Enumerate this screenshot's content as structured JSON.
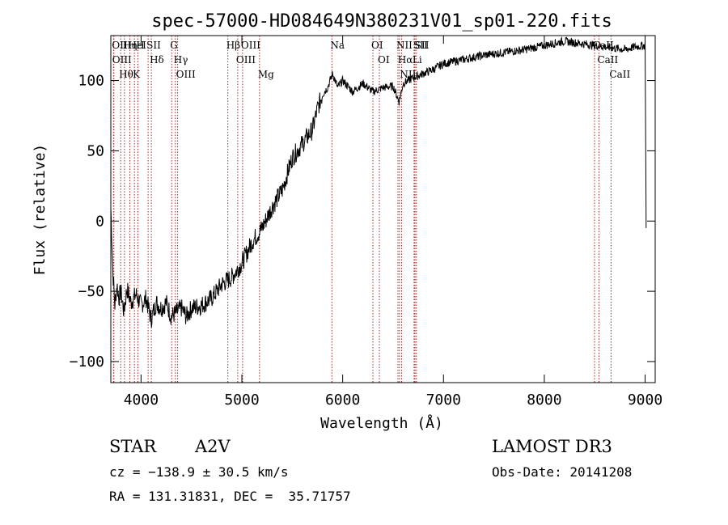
{
  "chart_data": {
    "type": "line",
    "title": "spec-57000-HD084649N380231V01_sp01-220.fits",
    "xlabel": "Wavelength (Å)",
    "ylabel": "Flux (relative)",
    "xlim": [
      3700,
      9100
    ],
    "ylim": [
      -115,
      132
    ],
    "xticks": [
      4000,
      5000,
      6000,
      7000,
      8000,
      9000
    ],
    "yticks": [
      -100,
      -50,
      0,
      50,
      100
    ],
    "grid": false,
    "legend": "none",
    "line_color": "#000000",
    "marker_color": "#aa2222",
    "series": [
      {
        "x": [
          3700,
          3720,
          3740,
          3760,
          3780,
          3800,
          3830,
          3860,
          3900,
          3950,
          4000,
          4050,
          4100,
          4150,
          4200,
          4250,
          4300,
          4350,
          4400,
          4450,
          4500,
          4600,
          4700,
          4800,
          4900,
          5000,
          5100,
          5200,
          5300,
          5400,
          5500,
          5600,
          5700,
          5750,
          5800,
          5850,
          5900,
          5950,
          6000,
          6100,
          6200,
          6300,
          6400,
          6500,
          6560,
          6600,
          6700,
          6800,
          6900,
          7000,
          7200,
          7400,
          7600,
          7800,
          8000,
          8200,
          8400,
          8600,
          8800,
          8900,
          9000,
          9010
        ],
        "y": [
          10,
          -35,
          -60,
          -45,
          -55,
          -50,
          -65,
          -48,
          -58,
          -52,
          -60,
          -55,
          -70,
          -58,
          -62,
          -58,
          -68,
          -65,
          -62,
          -68,
          -62,
          -60,
          -55,
          -45,
          -40,
          -30,
          -15,
          -5,
          10,
          22,
          45,
          55,
          65,
          80,
          90,
          95,
          105,
          95,
          100,
          92,
          98,
          92,
          95,
          96,
          85,
          98,
          102,
          105,
          108,
          112,
          115,
          118,
          120,
          122,
          125,
          128,
          126,
          124,
          122,
          124,
          125,
          -5
        ]
      }
    ],
    "lines": [
      {
        "label": "Hθ",
        "x": 3798
      },
      {
        "label": "OII",
        "x": 3727
      },
      {
        "label": "OIII",
        "x": 3730
      },
      {
        "label": "K",
        "x": 3934
      },
      {
        "label": "HeI",
        "x": 3889
      },
      {
        "label": "Hη",
        "x": 3835
      },
      {
        "label": "H",
        "x": 3968
      },
      {
        "label": "SII",
        "x": 4070
      },
      {
        "label": "Hδ",
        "x": 4102
      },
      {
        "label": "OIII",
        "x": 4363
      },
      {
        "label": "Hγ",
        "x": 4340
      },
      {
        "label": "G",
        "x": 4304
      },
      {
        "label": "Hβ",
        "x": 4861
      },
      {
        "label": "OIII",
        "x": 4959
      },
      {
        "label": "OIII",
        "x": 5007
      },
      {
        "label": "Mg",
        "x": 5175
      },
      {
        "label": "Na",
        "x": 5893
      },
      {
        "label": "OI",
        "x": 6300
      },
      {
        "label": "OI",
        "x": 6364
      },
      {
        "label": "Hα",
        "x": 6563
      },
      {
        "label": "NII",
        "x": 6548
      },
      {
        "label": "NII",
        "x": 6584
      },
      {
        "label": "SII",
        "x": 6717
      },
      {
        "label": "Li",
        "x": 6708
      },
      {
        "label": "SII",
        "x": 6731
      },
      {
        "label": "CaII",
        "x": 8498
      },
      {
        "label": "CaII",
        "x": 8542
      },
      {
        "label": "CaII",
        "x": 8662
      }
    ]
  },
  "info": {
    "class_label": "STAR",
    "subclass": "A2V",
    "survey": "LAMOST DR3",
    "cz": "cz = −138.9 ± 30.5 km/s",
    "obs_date": "Obs-Date: 20141208",
    "coords": "RA = 131.31831, DEC =  35.71757"
  }
}
